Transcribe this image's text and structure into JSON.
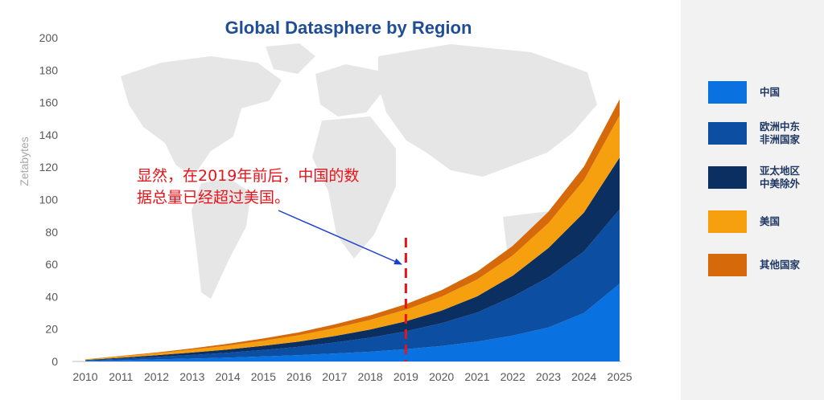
{
  "chart_data": {
    "type": "area",
    "stacked": true,
    "title": "Global Datasphere by Region",
    "xlabel": "",
    "ylabel": "Zetabytes",
    "ylim": [
      0,
      200
    ],
    "yticks": [
      0,
      20,
      40,
      60,
      80,
      100,
      120,
      140,
      160,
      180,
      200
    ],
    "x": [
      "2010",
      "2011",
      "2012",
      "2013",
      "2014",
      "2015",
      "2016",
      "2017",
      "2018",
      "2019",
      "2020",
      "2021",
      "2022",
      "2023",
      "2024",
      "2025"
    ],
    "series": [
      {
        "name": "中国",
        "color": "#0a71e0",
        "values": [
          0.3,
          0.8,
          1.3,
          1.8,
          2.4,
          3.1,
          3.9,
          4.9,
          6.0,
          7.6,
          9.6,
          12.2,
          16.0,
          21.0,
          30.0,
          48.0
        ]
      },
      {
        "name": "欧洲中东\n非洲国家",
        "color": "#0b4ea2",
        "values": [
          0.4,
          0.9,
          1.5,
          2.2,
          3.0,
          4.0,
          5.2,
          6.8,
          8.7,
          11.0,
          14.0,
          18.0,
          24.0,
          31.0,
          38.0,
          46.0
        ]
      },
      {
        "name": "亚太地区\n中美除外",
        "color": "#0b2f61",
        "values": [
          0.2,
          0.6,
          1.0,
          1.5,
          2.0,
          2.6,
          3.2,
          4.0,
          5.0,
          6.2,
          7.8,
          10.0,
          13.0,
          18.0,
          24.0,
          32.0
        ]
      },
      {
        "name": "美国",
        "color": "#f7a00f",
        "values": [
          0.3,
          0.8,
          1.2,
          1.8,
          2.4,
          3.1,
          3.9,
          4.9,
          6.0,
          7.2,
          8.6,
          10.4,
          12.5,
          15.5,
          20.0,
          26.0
        ]
      },
      {
        "name": "其他国家",
        "color": "#d6690a",
        "values": [
          0.1,
          0.3,
          0.5,
          0.8,
          1.1,
          1.4,
          1.8,
          2.3,
          2.8,
          3.4,
          4.0,
          4.9,
          5.9,
          7.0,
          8.4,
          10.0
        ]
      }
    ],
    "legend_position": "right",
    "grid": false,
    "annotations": [
      {
        "text_lines": [
          "显然，在2019年前后，中国的数",
          "据总量已经超过美国。"
        ],
        "color": "#e8141c",
        "points_to_x": "2019"
      }
    ],
    "reference_lines": [
      {
        "x": "2019",
        "style": "dashed",
        "color": "#e8141c"
      }
    ]
  }
}
